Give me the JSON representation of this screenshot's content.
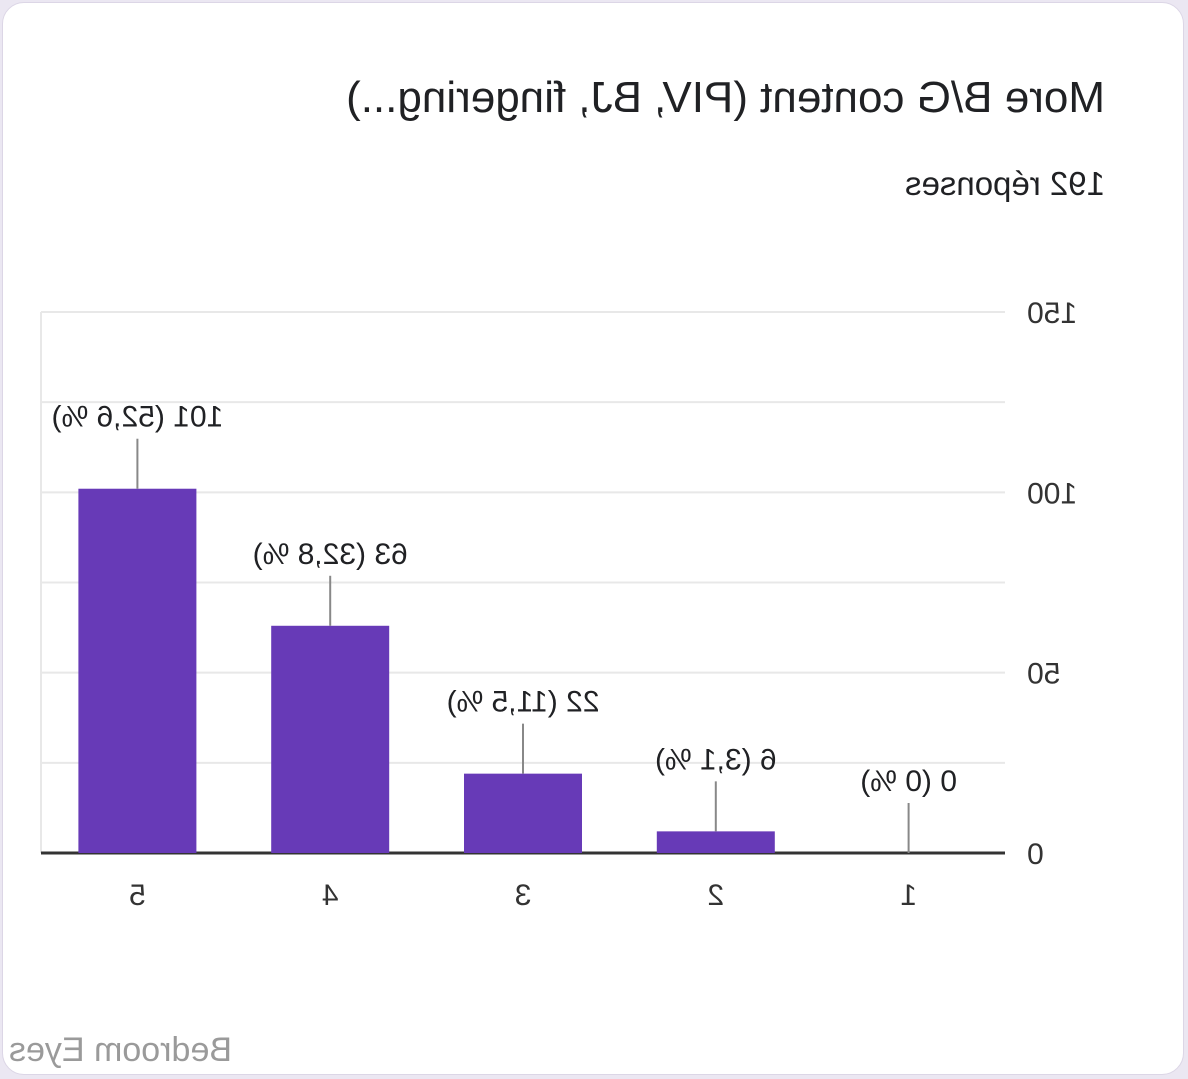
{
  "card": {
    "title": "More B/G content (PIV, BJ, fingering...)",
    "subtitle": "192 réponses",
    "watermark": "Bedroom Eyes"
  },
  "colors": {
    "bar": "#673ab7",
    "grid": "#e8e8e8",
    "axis": "#333333",
    "text": "#202124",
    "leader": "#888888"
  },
  "chart_data": {
    "type": "bar",
    "mirrored": true,
    "categories": [
      "1",
      "2",
      "3",
      "4",
      "5"
    ],
    "values": [
      0,
      6,
      22,
      63,
      101
    ],
    "data_labels": [
      "0 (0 %)",
      "6 (3,1 %)",
      "22 (11,5 %)",
      "63 (32,8 %)",
      "101 (52,6 %)"
    ],
    "y_ticks": [
      0,
      50,
      100,
      150
    ],
    "y_tick_labels": [
      "0",
      "50",
      "100",
      "150"
    ],
    "ylim": [
      0,
      150
    ],
    "grid": true,
    "legend": "none"
  }
}
